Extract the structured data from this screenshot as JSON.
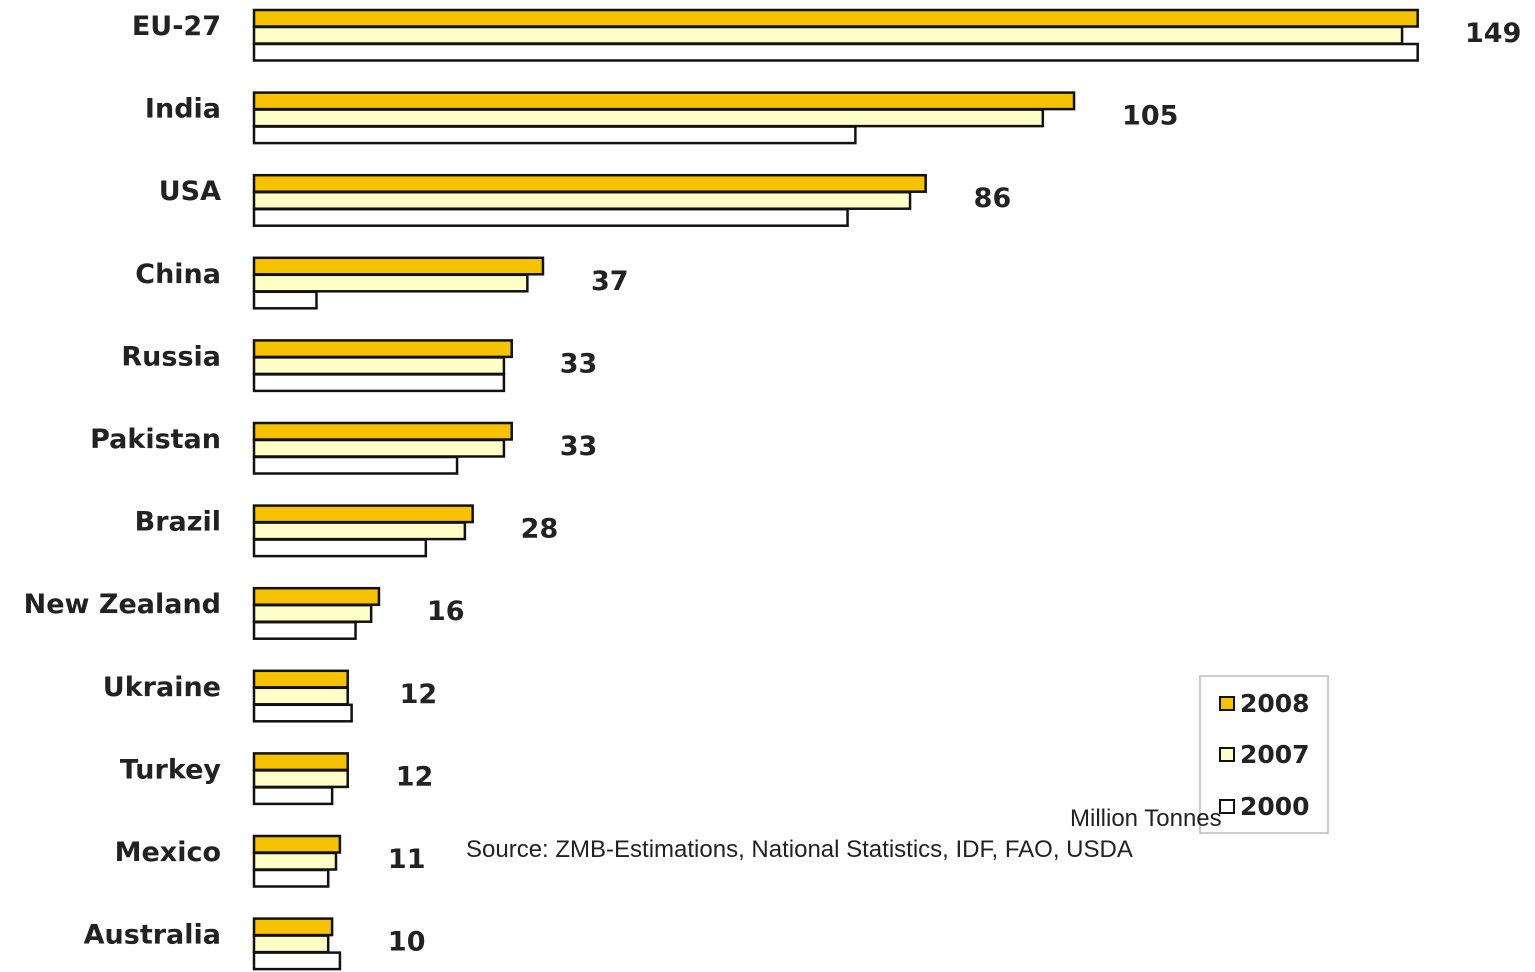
{
  "chart_data": {
    "type": "bar",
    "orientation": "horizontal",
    "categories": [
      "EU-27",
      "India",
      "USA",
      "China",
      "Russia",
      "Pakistan",
      "Brazil",
      "New Zealand",
      "Ukraine",
      "Turkey",
      "Mexico",
      "Australia"
    ],
    "series": [
      {
        "name": "2008",
        "color": "#F7C200",
        "values": [
          149,
          105,
          86,
          37,
          33,
          33,
          28,
          16,
          12,
          12,
          11,
          10
        ]
      },
      {
        "name": "2007",
        "color": "#FFFFC8",
        "values": [
          147,
          101,
          84,
          35,
          32,
          32,
          27,
          15,
          12,
          12,
          10.5,
          9.5
        ]
      },
      {
        "name": "2000",
        "color": "#FFFFFF",
        "values": [
          149,
          77,
          76,
          8,
          32,
          26,
          22,
          13,
          12.5,
          10,
          9.5,
          11
        ]
      }
    ],
    "data_labels": [
      "149",
      "105",
      "86",
      "37",
      "33",
      "33",
      "28",
      "16",
      "12",
      "12",
      "11",
      "10"
    ],
    "unit_label": "Million Tonnes",
    "source": "Source: ZMB-Estimations, National Statistics, IDF, FAO, USDA",
    "legend_position": "bottom-right",
    "bar_outline": "#111111",
    "grid": false
  }
}
